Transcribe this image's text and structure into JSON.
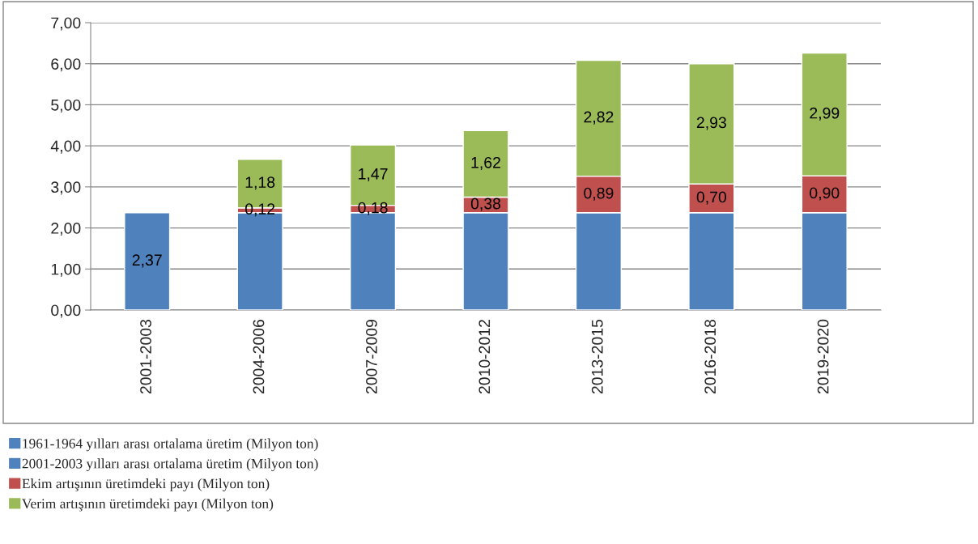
{
  "chart_data": {
    "type": "bar",
    "stacked": true,
    "categories": [
      "2001-2003",
      "2004-2006",
      "2007-2009",
      "2010-2012",
      "2013-2015",
      "2016-2018",
      "2019-2020"
    ],
    "series": [
      {
        "name": "1961-1964 yılları arası ortalama üretim (Milyon ton)",
        "color": "#4f81bd",
        "values": [
          null,
          null,
          null,
          null,
          null,
          null,
          null
        ]
      },
      {
        "name": "2001-2003 yılları arası ortalama üretim (Milyon ton)",
        "color": "#4f81bd",
        "values": [
          2.37,
          2.37,
          2.37,
          2.37,
          2.37,
          2.37,
          2.37
        ],
        "value_labels": [
          "2,37",
          null,
          null,
          null,
          null,
          null,
          null
        ]
      },
      {
        "name": "Ekim artışının üretimdeki payı (Milyon ton)",
        "color": "#c0504d",
        "values": [
          null,
          0.12,
          0.18,
          0.38,
          0.89,
          0.7,
          0.9
        ],
        "value_labels": [
          null,
          "0,12",
          "0,18",
          "0,38",
          "0,89",
          "0,70",
          "0,90"
        ]
      },
      {
        "name": "Verim artışının üretimdeki payı (Milyon ton)",
        "color": "#9bbb59",
        "values": [
          null,
          1.18,
          1.47,
          1.62,
          2.82,
          2.93,
          2.99
        ],
        "value_labels": [
          null,
          "1,18",
          "1,47",
          "1,62",
          "2,82",
          "2,93",
          "2,99"
        ]
      }
    ],
    "ylim": [
      0,
      7
    ],
    "yticks": [
      {
        "value": 0,
        "label": "0,00"
      },
      {
        "value": 1,
        "label": "1,00"
      },
      {
        "value": 2,
        "label": "2,00"
      },
      {
        "value": 3,
        "label": "3,00"
      },
      {
        "value": 4,
        "label": "4,00"
      },
      {
        "value": 5,
        "label": "5,00"
      },
      {
        "value": 6,
        "label": "6,00"
      },
      {
        "value": 7,
        "label": "7,00"
      }
    ],
    "grid": "y",
    "legend": "bottom"
  }
}
